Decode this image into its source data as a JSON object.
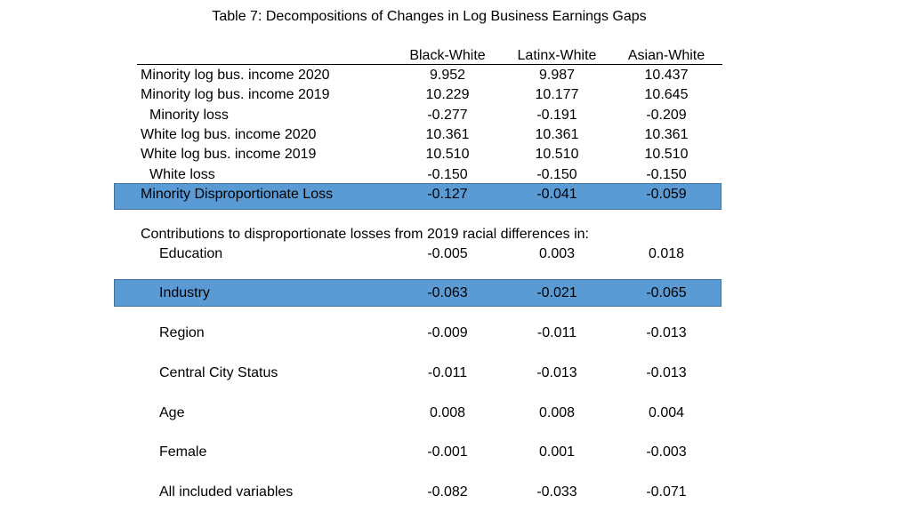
{
  "title": "Table 7: Decompositions of Changes in Log Business Earnings Gaps",
  "columns": [
    "Black-White",
    "Latinx-White",
    "Asian-White"
  ],
  "top_rows": [
    {
      "label": "Minority log bus. income 2020",
      "values": [
        "9.952",
        "9.987",
        "10.437"
      ]
    },
    {
      "label": "Minority log bus. income 2019",
      "values": [
        "10.229",
        "10.177",
        "10.645"
      ]
    },
    {
      "label": "Minority loss",
      "values": [
        "-0.277",
        "-0.191",
        "-0.209"
      ]
    },
    {
      "label": "White log bus. income 2020",
      "values": [
        "10.361",
        "10.361",
        "10.361"
      ]
    },
    {
      "label": "White log bus. income 2019",
      "values": [
        "10.510",
        "10.510",
        "10.510"
      ]
    },
    {
      "label": "White loss",
      "values": [
        "-0.150",
        "-0.150",
        "-0.150"
      ]
    },
    {
      "label": "Minority Disproportionate Loss",
      "values": [
        "-0.127",
        "-0.041",
        "-0.059"
      ]
    }
  ],
  "contributions_heading": "Contributions to disproportionate losses from 2019 racial differences in:",
  "contrib_rows": [
    {
      "label": "Education",
      "values": [
        "-0.005",
        "0.003",
        "0.018"
      ]
    },
    {
      "label": "Industry",
      "values": [
        "-0.063",
        "-0.021",
        "-0.065"
      ]
    },
    {
      "label": "Region",
      "values": [
        "-0.009",
        "-0.011",
        "-0.013"
      ]
    },
    {
      "label": "Central City Status",
      "values": [
        "-0.011",
        "-0.013",
        "-0.013"
      ]
    },
    {
      "label": "Age",
      "values": [
        "0.008",
        "0.008",
        "0.004"
      ]
    },
    {
      "label": "Female",
      "values": [
        "-0.001",
        "0.001",
        "-0.003"
      ]
    },
    {
      "label": "All included variables",
      "values": [
        "-0.082",
        "-0.033",
        "-0.071"
      ]
    }
  ],
  "highlight_color": "#5b9bd5"
}
